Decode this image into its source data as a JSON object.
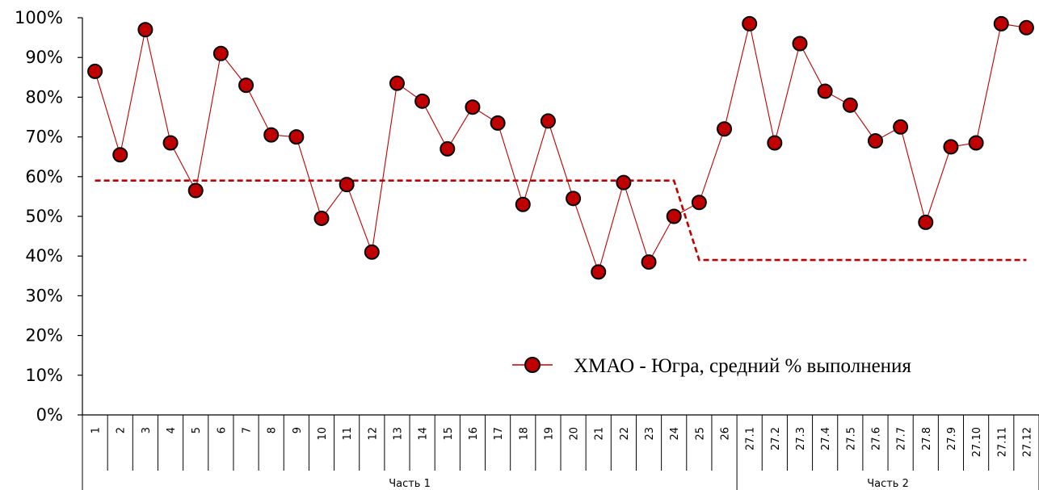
{
  "chart_data": {
    "type": "line",
    "categories": [
      "1",
      "2",
      "3",
      "4",
      "5",
      "6",
      "7",
      "8",
      "9",
      "10",
      "11",
      "12",
      "13",
      "14",
      "15",
      "16",
      "17",
      "18",
      "19",
      "20",
      "21",
      "22",
      "23",
      "24",
      "25",
      "26",
      "27.1",
      "27.2",
      "27.3",
      "27.4",
      "27.5",
      "27.6",
      "27.7",
      "27.8",
      "27.9",
      "27.10",
      "27.11",
      "27.12"
    ],
    "groups": [
      {
        "label": "Часть 1",
        "count": 26
      },
      {
        "label": "Часть 2",
        "count": 12
      }
    ],
    "series": [
      {
        "name": "ХМАО - Югра, средний % выполнения",
        "color": "#c00000",
        "marker": "circle",
        "values": [
          86.5,
          65.5,
          97,
          68.5,
          56.5,
          91,
          83,
          70.5,
          70,
          49.5,
          58,
          41,
          83.5,
          79,
          67,
          77.5,
          73.5,
          53,
          74,
          54.5,
          36,
          58.5,
          38.5,
          50,
          53.5,
          72,
          98.5,
          68.5,
          93.5,
          81.5,
          78,
          69,
          72.5,
          48.5,
          67.5,
          68.5,
          98.5,
          97.5
        ]
      }
    ],
    "reference_line": {
      "style": "dashed",
      "color": "#c00000",
      "values": [
        59,
        59,
        59,
        59,
        59,
        59,
        59,
        59,
        59,
        59,
        59,
        59,
        59,
        59,
        59,
        59,
        59,
        59,
        59,
        59,
        59,
        59,
        59,
        59,
        39,
        39,
        39,
        39,
        39,
        39,
        39,
        39,
        39,
        39,
        39,
        39,
        39,
        39
      ]
    },
    "y_ticks": [
      "0%",
      "10%",
      "20%",
      "30%",
      "40%",
      "50%",
      "60%",
      "70%",
      "80%",
      "90%",
      "100%"
    ],
    "ylim": [
      0,
      100
    ],
    "grid": false,
    "legend_position": "bottom-right"
  }
}
